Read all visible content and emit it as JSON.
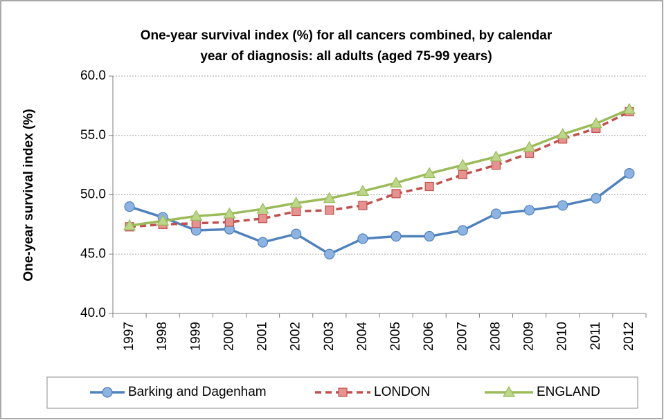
{
  "chart_data": {
    "type": "line",
    "title": [
      "One-year survival index (%) for all cancers combined, by calendar",
      "year of diagnosis: all adults (aged 75-99 years)"
    ],
    "y_label": "One-year survival index (%)",
    "categories": [
      "1997",
      "1998",
      "1999",
      "2000",
      "2001",
      "2002",
      "2003",
      "2004",
      "2005",
      "2006",
      "2007",
      "2008",
      "2009",
      "2010",
      "2011",
      "2012"
    ],
    "series": [
      {
        "name": "Barking and Dagenham",
        "color": "#4f81bd",
        "marker": "circle",
        "dash": false,
        "values": [
          49.0,
          48.1,
          47.0,
          47.1,
          46.0,
          46.7,
          45.0,
          46.3,
          46.5,
          46.5,
          47.0,
          48.4,
          48.7,
          49.1,
          49.7,
          51.8
        ]
      },
      {
        "name": "LONDON",
        "color": "#c0504d",
        "marker": "square",
        "dash": true,
        "values": [
          47.3,
          47.5,
          47.6,
          47.7,
          48.0,
          48.6,
          48.7,
          49.1,
          50.1,
          50.7,
          51.7,
          52.5,
          53.5,
          54.7,
          55.6,
          57.0
        ]
      },
      {
        "name": "ENGLAND",
        "color": "#9bbb59",
        "marker": "triangle",
        "dash": false,
        "values": [
          47.4,
          47.8,
          48.2,
          48.4,
          48.8,
          49.3,
          49.7,
          50.3,
          51.0,
          51.8,
          52.5,
          53.2,
          54.0,
          55.1,
          56.0,
          57.2
        ]
      }
    ],
    "ylim": [
      40,
      60
    ],
    "yticks": [
      {
        "value": 40,
        "label": "40.0"
      },
      {
        "value": 45,
        "label": "45.0"
      },
      {
        "value": 50,
        "label": "50.0"
      },
      {
        "value": 55,
        "label": "55.0"
      },
      {
        "value": 60,
        "label": "60.0"
      }
    ],
    "grid": true,
    "legend": "bottom"
  }
}
